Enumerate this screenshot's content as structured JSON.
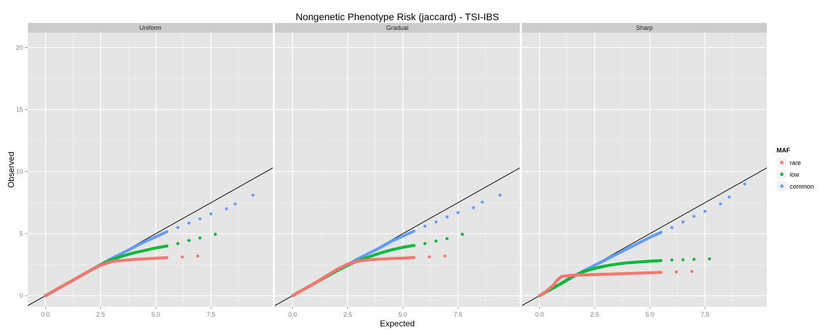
{
  "chart_data": {
    "type": "scatter",
    "title": "Nongenetic Phenotype Risk (jaccard) - TSI-IBS",
    "xlabel": "Expected",
    "ylabel": "Observed",
    "xlim": [
      -0.8,
      10.3
    ],
    "ylim": [
      -0.9,
      21.2
    ],
    "x_ticks": [
      0,
      2.5,
      5,
      7.5
    ],
    "x_tick_labels": [
      "0.0",
      "2.5",
      "5.0",
      "7.5"
    ],
    "y_ticks": [
      0,
      5,
      10,
      15,
      20
    ],
    "y_tick_labels": [
      "0",
      "5",
      "10",
      "15",
      "20"
    ],
    "grid": true,
    "reference_line": "y = x",
    "legend": {
      "title": "MAF",
      "position": "right",
      "entries": [
        "rare",
        "low",
        "common"
      ]
    },
    "colors": {
      "rare": "#F8766D",
      "low": "#00BA38",
      "common": "#619CFF"
    },
    "panels": [
      {
        "name": "Uniform",
        "series": [
          {
            "name": "rare",
            "x": [
              0,
              0.5,
              1.0,
              1.5,
              2.0,
              2.5,
              3.0,
              3.5,
              4.0,
              4.5,
              5.0,
              5.5,
              6.2,
              6.9
            ],
            "y": [
              0,
              0.5,
              1.0,
              1.5,
              2.0,
              2.45,
              2.75,
              2.85,
              2.92,
              2.97,
              3.02,
              3.07,
              3.12,
              3.2
            ]
          },
          {
            "name": "low",
            "x": [
              0,
              0.5,
              1.0,
              1.5,
              2.0,
              2.5,
              3.0,
              3.5,
              4.0,
              4.5,
              5.0,
              5.5,
              6.0,
              6.5,
              7.0,
              7.7
            ],
            "y": [
              0,
              0.5,
              1.0,
              1.5,
              2.0,
              2.5,
              2.9,
              3.2,
              3.45,
              3.65,
              3.85,
              4.0,
              4.2,
              4.45,
              4.65,
              4.95
            ]
          },
          {
            "name": "common",
            "x": [
              0,
              0.5,
              1.0,
              1.5,
              2.0,
              2.5,
              3.0,
              3.5,
              4.0,
              4.5,
              5.0,
              5.5,
              6.0,
              6.5,
              7.0,
              7.5,
              8.2,
              8.6,
              9.4
            ],
            "y": [
              0,
              0.5,
              1.0,
              1.5,
              2.0,
              2.5,
              3.0,
              3.45,
              3.9,
              4.35,
              4.75,
              5.15,
              5.5,
              5.85,
              6.2,
              6.6,
              7.0,
              7.4,
              8.1
            ]
          }
        ]
      },
      {
        "name": "Gradual",
        "series": [
          {
            "name": "rare",
            "x": [
              0,
              0.5,
              1.0,
              1.5,
              2.0,
              2.5,
              3.0,
              3.5,
              4.0,
              4.5,
              5.0,
              5.5,
              6.2,
              6.9
            ],
            "y": [
              0,
              0.5,
              1.0,
              1.55,
              2.1,
              2.55,
              2.8,
              2.9,
              2.95,
              3.0,
              3.03,
              3.08,
              3.13,
              3.2
            ]
          },
          {
            "name": "low",
            "x": [
              0,
              0.5,
              1.0,
              1.5,
              2.0,
              2.5,
              3.0,
              3.5,
              4.0,
              4.5,
              5.0,
              5.5,
              6.0,
              6.5,
              7.0,
              7.7
            ],
            "y": [
              0,
              0.5,
              1.0,
              1.5,
              2.0,
              2.45,
              2.85,
              3.15,
              3.45,
              3.7,
              3.9,
              4.05,
              4.2,
              4.4,
              4.6,
              4.95
            ]
          },
          {
            "name": "common",
            "x": [
              0,
              0.5,
              1.0,
              1.5,
              2.0,
              2.5,
              3.0,
              3.5,
              4.0,
              4.5,
              5.0,
              5.5,
              6.0,
              6.5,
              7.0,
              7.5,
              8.2,
              8.6,
              9.4
            ],
            "y": [
              0,
              0.5,
              1.0,
              1.5,
              2.0,
              2.5,
              3.0,
              3.45,
              3.9,
              4.4,
              4.8,
              5.2,
              5.6,
              5.95,
              6.35,
              6.7,
              7.1,
              7.55,
              8.1
            ]
          }
        ]
      },
      {
        "name": "Sharp",
        "series": [
          {
            "name": "rare",
            "x": [
              0,
              0.3,
              0.6,
              0.8,
              1.0,
              1.5,
              2.0,
              2.5,
              3.0,
              3.5,
              4.0,
              4.5,
              5.0,
              5.5,
              6.2,
              6.9
            ],
            "y": [
              0,
              0.35,
              0.8,
              1.25,
              1.55,
              1.65,
              1.68,
              1.7,
              1.73,
              1.76,
              1.79,
              1.82,
              1.85,
              1.88,
              1.92,
              1.95
            ]
          },
          {
            "name": "low",
            "x": [
              0,
              0.5,
              1.0,
              1.5,
              2.0,
              2.5,
              3.0,
              3.5,
              4.0,
              4.5,
              5.0,
              5.5,
              6.0,
              6.5,
              7.0,
              7.7
            ],
            "y": [
              0,
              0.5,
              1.0,
              1.55,
              1.95,
              2.2,
              2.4,
              2.55,
              2.65,
              2.72,
              2.78,
              2.83,
              2.87,
              2.9,
              2.93,
              2.97
            ]
          },
          {
            "name": "common",
            "x": [
              0,
              0.5,
              1.0,
              1.5,
              2.0,
              2.5,
              3.0,
              3.5,
              4.0,
              4.5,
              5.0,
              5.5,
              6.0,
              6.5,
              7.0,
              7.5,
              8.2,
              8.6,
              9.3
            ],
            "y": [
              0,
              0.5,
              1.0,
              1.5,
              2.0,
              2.45,
              2.9,
              3.35,
              3.8,
              4.25,
              4.7,
              5.1,
              5.5,
              5.95,
              6.4,
              6.8,
              7.4,
              7.95,
              9.0
            ]
          }
        ]
      }
    ]
  }
}
